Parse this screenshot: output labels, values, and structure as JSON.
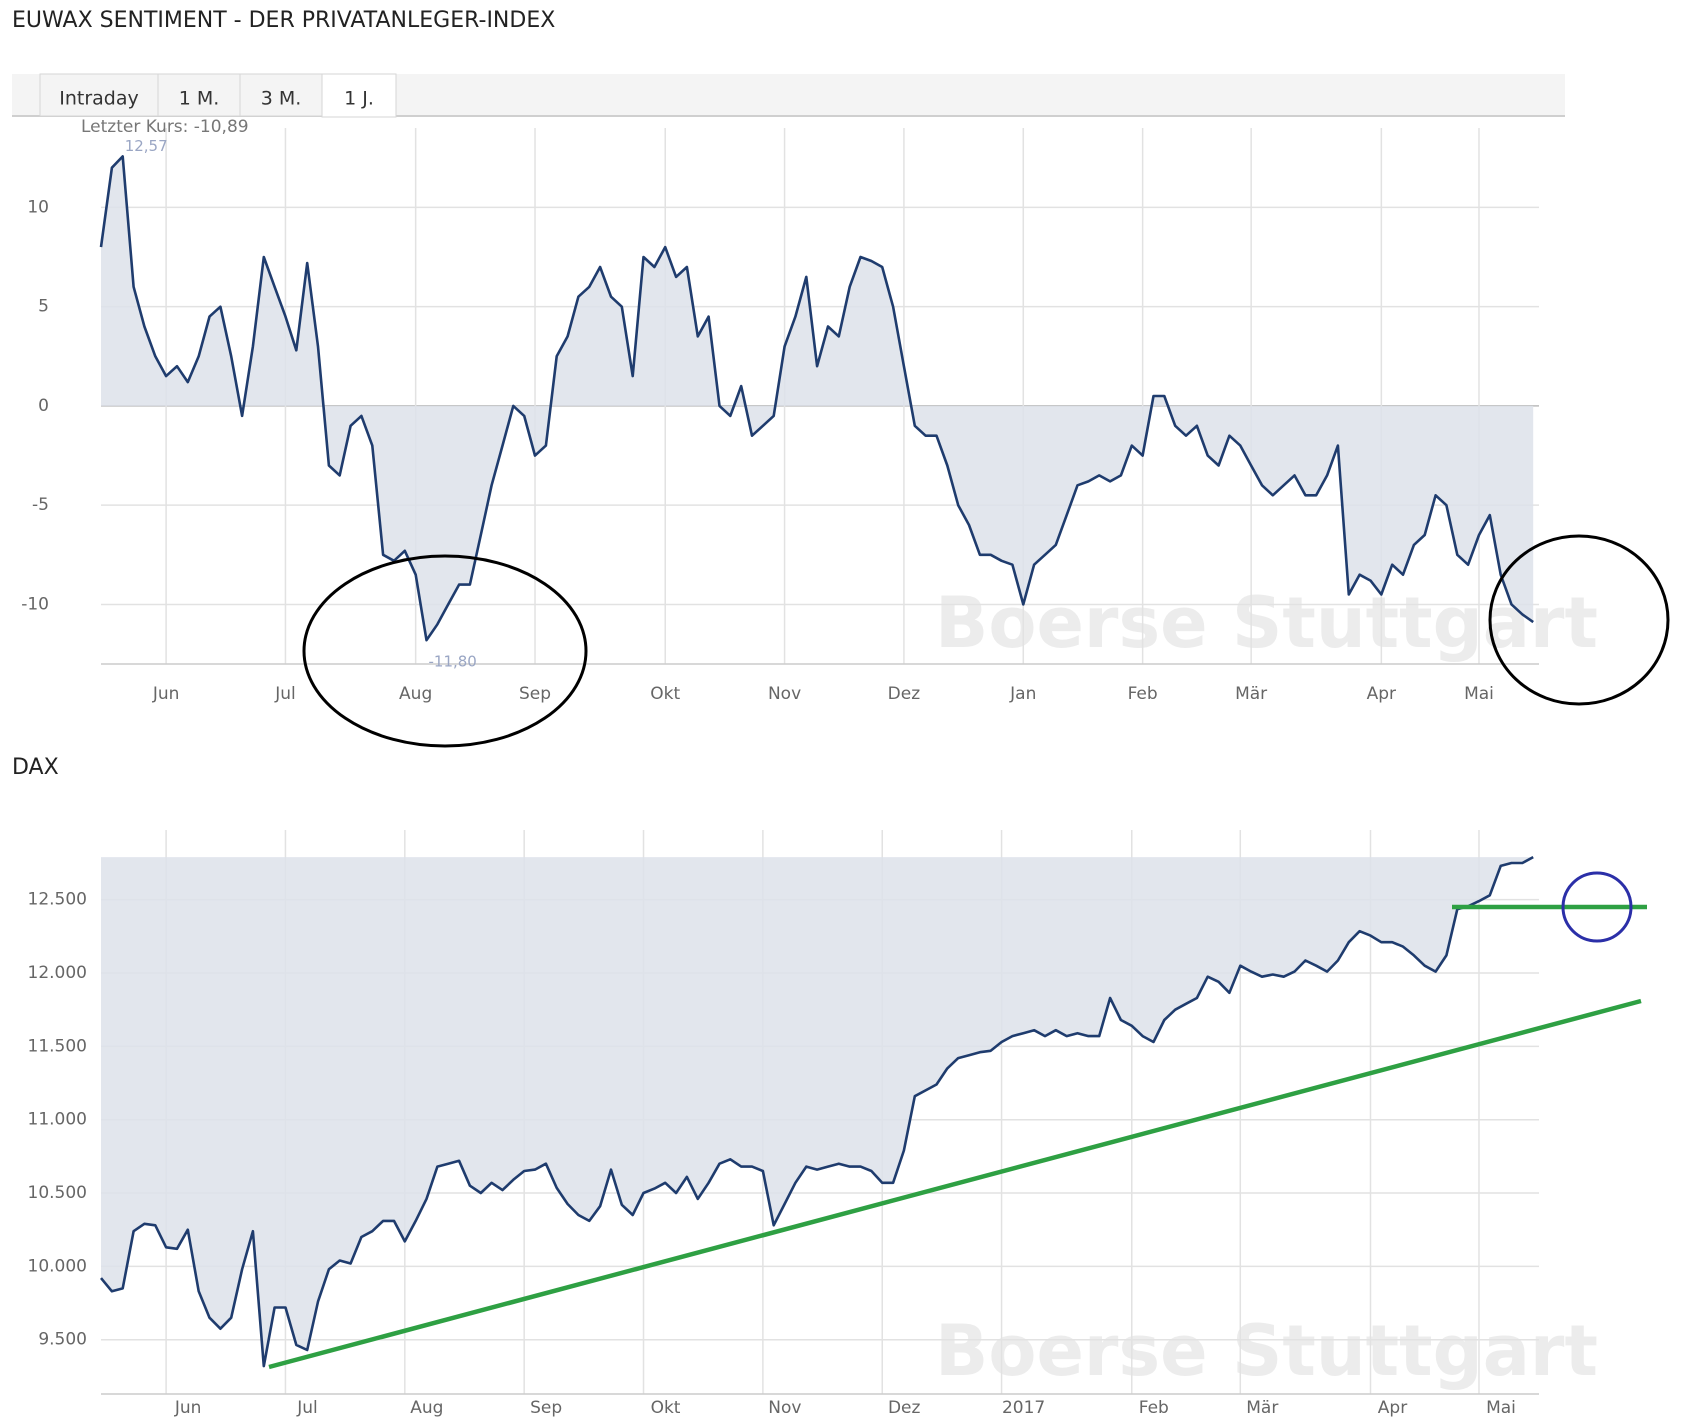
{
  "tabs": [
    "Intraday",
    "1 M.",
    "3 M.",
    "1 J."
  ],
  "active_tab": 3,
  "chart_data": [
    {
      "type": "line",
      "title": "EUWAX SENTIMENT - DER PRIVATANLEGER-INDEX",
      "subtitle": "Letzter Kurs: -10,89",
      "max_label": "12,57",
      "min_label": "-11,80",
      "watermark": "Boerse Stuttgart",
      "color": "#1f3c6e",
      "fill_color": "#dde2ea",
      "fill_to": "zero",
      "grid": true,
      "xlim": [
        0,
        132
      ],
      "xticks": [
        {
          "value": 6,
          "label": "Jun"
        },
        {
          "value": 17,
          "label": "Jul"
        },
        {
          "value": 29,
          "label": "Aug"
        },
        {
          "value": 40,
          "label": "Sep"
        },
        {
          "value": 52,
          "label": "Okt"
        },
        {
          "value": 63,
          "label": "Nov"
        },
        {
          "value": 74,
          "label": "Dez"
        },
        {
          "value": 85,
          "label": "Jan"
        },
        {
          "value": 96,
          "label": "Feb"
        },
        {
          "value": 106,
          "label": "Mär"
        },
        {
          "value": 118,
          "label": "Apr"
        },
        {
          "value": 127,
          "label": "Mai"
        }
      ],
      "ylim": [
        -13,
        14
      ],
      "yticks": [
        -10,
        -5,
        0,
        5,
        10
      ],
      "values": [
        8,
        12,
        12.57,
        6,
        4,
        2.5,
        1.5,
        2,
        1.2,
        2.5,
        4.5,
        5,
        2.5,
        -0.5,
        3,
        7.5,
        6,
        4.5,
        2.8,
        7.2,
        3,
        -3,
        -3.5,
        -1,
        -0.5,
        -2,
        -7.5,
        -7.8,
        -7.3,
        -8.5,
        -11.8,
        -11,
        -10,
        -9,
        -9,
        -6.5,
        -4,
        -2,
        0,
        -0.5,
        -2.5,
        -2,
        2.5,
        3.5,
        5.5,
        6,
        7,
        5.5,
        5,
        1.5,
        7.5,
        7,
        8,
        6.5,
        7,
        3.5,
        4.5,
        0,
        -0.5,
        1,
        -1.5,
        -1,
        -0.5,
        3,
        4.5,
        6.5,
        2,
        4,
        3.5,
        6,
        7.5,
        7.3,
        7,
        5,
        2,
        -1,
        -1.5,
        -1.5,
        -3,
        -5,
        -6,
        -7.5,
        -7.5,
        -7.8,
        -8,
        -10,
        -8,
        -7.5,
        -7,
        -5.5,
        -4,
        -3.8,
        -3.5,
        -3.8,
        -3.5,
        -2,
        -2.5,
        0.5,
        0.5,
        -1,
        -1.5,
        -1,
        -2.5,
        -3,
        -1.5,
        -2,
        -3,
        -4,
        -4.5,
        -4,
        -3.5,
        -4.5,
        -4.5,
        -3.5,
        -2,
        -9.5,
        -8.5,
        -8.8,
        -9.5,
        -8,
        -8.5,
        -7,
        -6.5,
        -4.5,
        -5,
        -7.5,
        -8,
        -6.5,
        -5.5,
        -8.5,
        -10,
        -10.5,
        -10.89
      ]
    },
    {
      "type": "line",
      "title": "DAX",
      "watermark": "Boerse Stuttgart",
      "color": "#1f3c6e",
      "fill_color": "#dde2ea",
      "fill_to": "max",
      "grid": true,
      "xlim": [
        0,
        132
      ],
      "xticks": [
        {
          "value": 6,
          "label": "Jun"
        },
        {
          "value": 17,
          "label": "Jul"
        },
        {
          "value": 28,
          "label": "Aug"
        },
        {
          "value": 39,
          "label": "Sep"
        },
        {
          "value": 50,
          "label": "Okt"
        },
        {
          "value": 61,
          "label": "Nov"
        },
        {
          "value": 72,
          "label": "Dez"
        },
        {
          "value": 83,
          "label": "2017"
        },
        {
          "value": 95,
          "label": "Feb"
        },
        {
          "value": 105,
          "label": "Mär"
        },
        {
          "value": 117,
          "label": "Apr"
        },
        {
          "value": 127,
          "label": "Mai"
        }
      ],
      "ylim": [
        9130,
        12975
      ],
      "yticks": [
        {
          "value": 9500,
          "label": "9.500"
        },
        {
          "value": 10000,
          "label": "10.000"
        },
        {
          "value": 10500,
          "label": "10.500"
        },
        {
          "value": 11000,
          "label": "11.000"
        },
        {
          "value": 11500,
          "label": "11.500"
        },
        {
          "value": 12000,
          "label": "12.000"
        },
        {
          "value": 12500,
          "label": "12.500"
        }
      ],
      "values": [
        9920,
        9830,
        9850,
        10240,
        10290,
        10280,
        10130,
        10120,
        10250,
        9830,
        9650,
        9575,
        9650,
        9980,
        10240,
        9320,
        9720,
        9720,
        9465,
        9430,
        9760,
        9980,
        10040,
        10020,
        10200,
        10240,
        10310,
        10310,
        10170,
        10310,
        10460,
        10680,
        10700,
        10720,
        10550,
        10500,
        10570,
        10520,
        10590,
        10650,
        10660,
        10700,
        10535,
        10425,
        10350,
        10310,
        10410,
        10660,
        10420,
        10350,
        10500,
        10530,
        10570,
        10500,
        10610,
        10460,
        10570,
        10700,
        10730,
        10680,
        10680,
        10650,
        10280,
        10425,
        10570,
        10680,
        10660,
        10680,
        10700,
        10680,
        10680,
        10650,
        10570,
        10570,
        10790,
        11160,
        11200,
        11240,
        11350,
        11420,
        11440,
        11460,
        11470,
        11530,
        11570,
        11590,
        11610,
        11570,
        11610,
        11570,
        11590,
        11570,
        11570,
        11830,
        11680,
        11640,
        11570,
        11530,
        11680,
        11750,
        11790,
        11830,
        11975,
        11940,
        11865,
        12050,
        12010,
        11975,
        11990,
        11975,
        12010,
        12085,
        12050,
        12010,
        12085,
        12210,
        12285,
        12255,
        12210,
        12210,
        12180,
        12120,
        12050,
        12010,
        12120,
        12435,
        12455,
        12490,
        12530,
        12730,
        12750,
        12750,
        12790
      ]
    }
  ]
}
